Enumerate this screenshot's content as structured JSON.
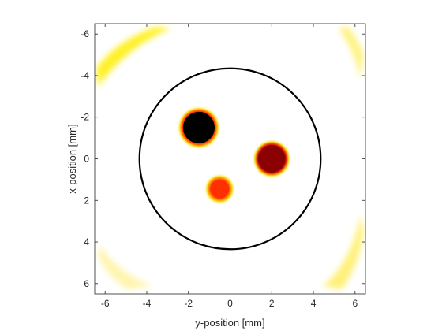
{
  "chart_data": {
    "type": "heatmap",
    "xlabel": "y-position [mm]",
    "ylabel": "x-position [mm]",
    "xlim": [
      -6.5,
      6.5
    ],
    "ylim": [
      -6.5,
      6.5
    ],
    "y_axis_direction": "reversed",
    "xticks": [
      -6,
      -4,
      -2,
      0,
      2,
      4,
      6
    ],
    "yticks": [
      -6,
      -4,
      -2,
      0,
      2,
      4,
      6
    ],
    "xtick_labels": [
      "-6",
      "-4",
      "-2",
      "0",
      "2",
      "4",
      "6"
    ],
    "ytick_labels": [
      "-6",
      "-4",
      "-2",
      "0",
      "2",
      "4",
      "6"
    ],
    "grid": false,
    "colormap": "hot (reversed)",
    "boundary_circle": {
      "center": [
        0,
        0
      ],
      "radius": 4.35,
      "color": "#000000"
    },
    "inclusions": [
      {
        "center_y": -1.5,
        "center_x": -1.5,
        "radius": 0.8,
        "color": "#000000",
        "rim_color": "#ff3000",
        "halo_color": "#ffe600"
      },
      {
        "center_y": 2.0,
        "center_x": 0.0,
        "radius": 0.7,
        "color": "#8b0000",
        "rim_color": "#d81000",
        "halo_color": "#ffe600"
      },
      {
        "center_y": -0.5,
        "center_x": 1.45,
        "radius": 0.5,
        "color": "#ff3000",
        "rim_color": "#ff6a00",
        "halo_color": "#ffe600"
      }
    ],
    "corner_artifacts": [
      {
        "corner": "top-left",
        "color": "#ffee00"
      },
      {
        "corner": "top-right",
        "color": "#fff06a"
      },
      {
        "corner": "bottom-left",
        "color": "#fff3a0"
      },
      {
        "corner": "bottom-right",
        "color": "#ffee60"
      }
    ]
  }
}
